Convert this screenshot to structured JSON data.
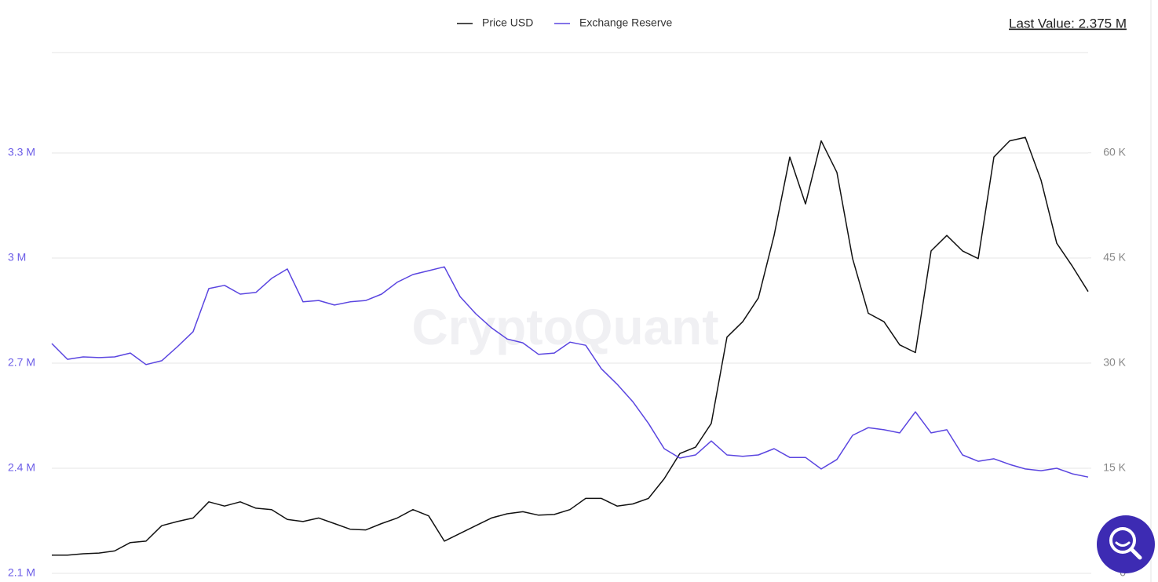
{
  "chart_data": {
    "type": "line",
    "watermark": "CryptoQuant",
    "annotation": "Last Value: 2.375 M",
    "grid": true,
    "legend_position": "top",
    "ylim": [
      2100000,
      3586600
    ],
    "yticks": [
      {
        "value": 2100000,
        "label": "2.1 M"
      },
      {
        "value": 2400000,
        "label": "2.4 M"
      },
      {
        "value": 2700000,
        "label": "2.7 M"
      },
      {
        "value": 3000000,
        "label": "3 M"
      },
      {
        "value": 3300000,
        "label": "3.3 M"
      }
    ],
    "y2lim": [
      0,
      74300
    ],
    "y2ticks": [
      0,
      {
        "value": 15000,
        "label": "15 K"
      },
      {
        "value": 30000,
        "label": "30 K"
      },
      {
        "value": 45000,
        "label": "45 K"
      },
      {
        "value": 60000,
        "label": "60 K"
      }
    ],
    "series": [
      {
        "name": "Price USD",
        "color": "#111111",
        "axis": "y2",
        "values": [
          2600,
          2600,
          2800,
          2900,
          3200,
          4400,
          4600,
          6800,
          7400,
          7900,
          10200,
          9600,
          10200,
          9300,
          9100,
          7700,
          7400,
          7900,
          7100,
          6300,
          6200,
          7100,
          7900,
          9100,
          8200,
          4600,
          5700,
          6800,
          7900,
          8500,
          8800,
          8300,
          8400,
          9100,
          10700,
          10700,
          9600,
          9900,
          10700,
          13500,
          17100,
          18000,
          21400,
          33700,
          35900,
          39300,
          48200,
          59400,
          52700,
          61700,
          57200,
          44900,
          37100,
          35900,
          32600,
          31500,
          46000,
          48200,
          46000,
          44900,
          59400,
          61700,
          62200,
          56100,
          47100,
          43800,
          40200
        ]
      },
      {
        "name": "Exchange Reserve",
        "color": "#5a45e0",
        "axis": "y",
        "values": [
          2756000,
          2711000,
          2718000,
          2716000,
          2718000,
          2729000,
          2696000,
          2707000,
          2747000,
          2790000,
          2913000,
          2922000,
          2897000,
          2902000,
          2942000,
          2969000,
          2875000,
          2879000,
          2866000,
          2875000,
          2879000,
          2897000,
          2931000,
          2953000,
          2964000,
          2975000,
          2890000,
          2841000,
          2801000,
          2769000,
          2758000,
          2725000,
          2729000,
          2760000,
          2751000,
          2684000,
          2640000,
          2590000,
          2528000,
          2456000,
          2429000,
          2438000,
          2478000,
          2438000,
          2434000,
          2438000,
          2456000,
          2431000,
          2431000,
          2398000,
          2425000,
          2494000,
          2516000,
          2510000,
          2501000,
          2561000,
          2501000,
          2510000,
          2438000,
          2420000,
          2427000,
          2411000,
          2398000,
          2393000,
          2400000,
          2384000,
          2375000
        ]
      }
    ]
  }
}
